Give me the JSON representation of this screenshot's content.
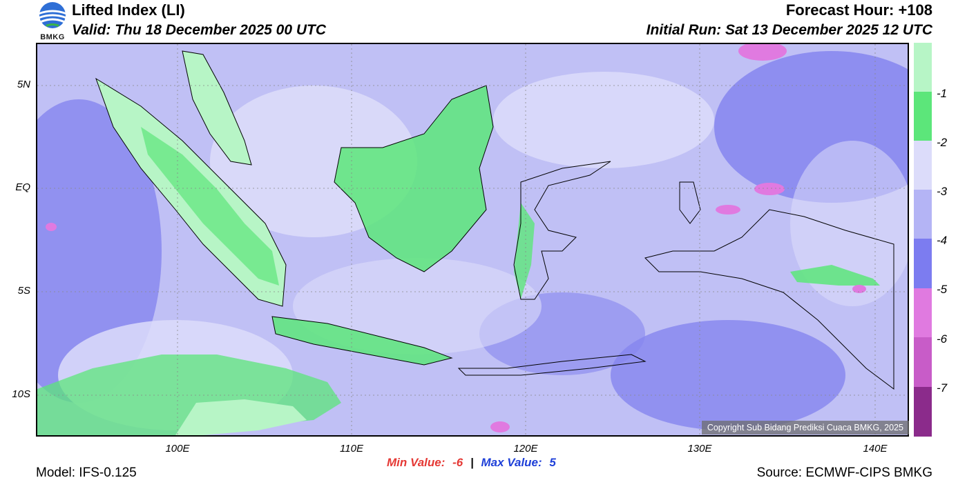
{
  "header": {
    "title": "Lifted Index (LI)",
    "valid": "Valid: Thu 18 December 2025 00 UTC",
    "forecast_hour": "Forecast Hour: +108",
    "initial_run": "Initial Run: Sat 13 December 2025 12 UTC"
  },
  "logo": {
    "text": "BMKG"
  },
  "map": {
    "lat_labels": [
      "5N",
      "EQ",
      "5S",
      "10S"
    ],
    "lon_labels": [
      "100E",
      "110E",
      "120E",
      "130E",
      "140E"
    ],
    "copyright": "Copyright Sub Bidang Prediksi Cuaca BMKG, 2025"
  },
  "stats": {
    "min_label": "Min Value:",
    "min_value": "-6",
    "separator": "|",
    "max_label": "Max Value:",
    "max_value": "5"
  },
  "footer": {
    "model": "Model: IFS-0.125",
    "source": "Source: ECMWF-CIPS BMKG"
  },
  "colorbar": {
    "labels": [
      "-1",
      "-2",
      "-3",
      "-4",
      "-5",
      "-6",
      "-7"
    ],
    "colors": [
      "#b7f5c6",
      "#5ce67a",
      "#dcdcfa",
      "#b4b4f5",
      "#7c7cf0",
      "#e07ae0",
      "#c85cc8",
      "#8b2b8b"
    ]
  },
  "palette": {
    "background": "#c0c0f5",
    "pale_green": "#b7f5c6",
    "green": "#5ce67a",
    "light_lavender": "#dcdcfa",
    "lavender": "#b4b4f5",
    "blue_violet": "#8585ef",
    "pink": "#e07ae0"
  }
}
